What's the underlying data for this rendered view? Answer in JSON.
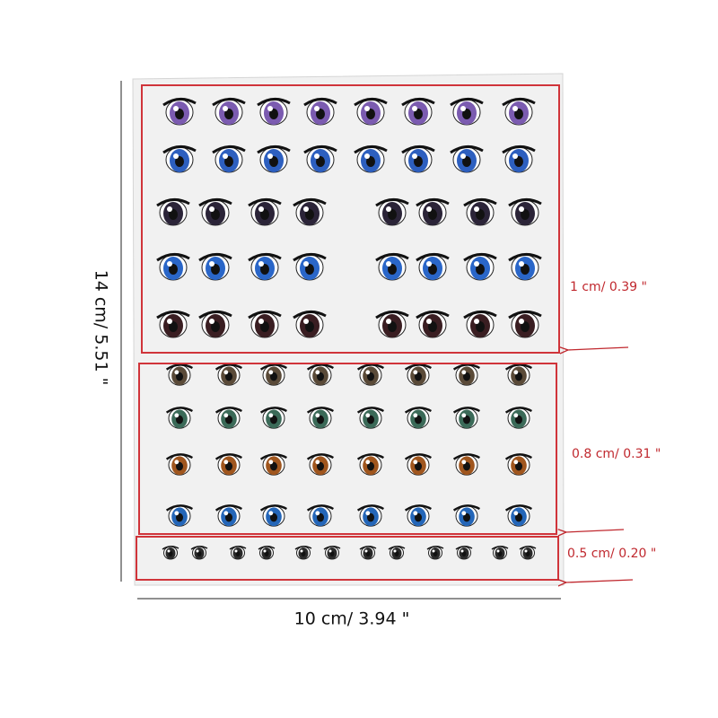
{
  "dimensions": {
    "height": "14  cm/ 5.51 \"",
    "width": "10  cm/ 3.94 \""
  },
  "sections": [
    {
      "label": "1 cm/   0.39 \""
    },
    {
      "label": "0.8 cm/   0.31 \""
    },
    {
      "label": "0.5 cm/   0.20 \""
    }
  ]
}
